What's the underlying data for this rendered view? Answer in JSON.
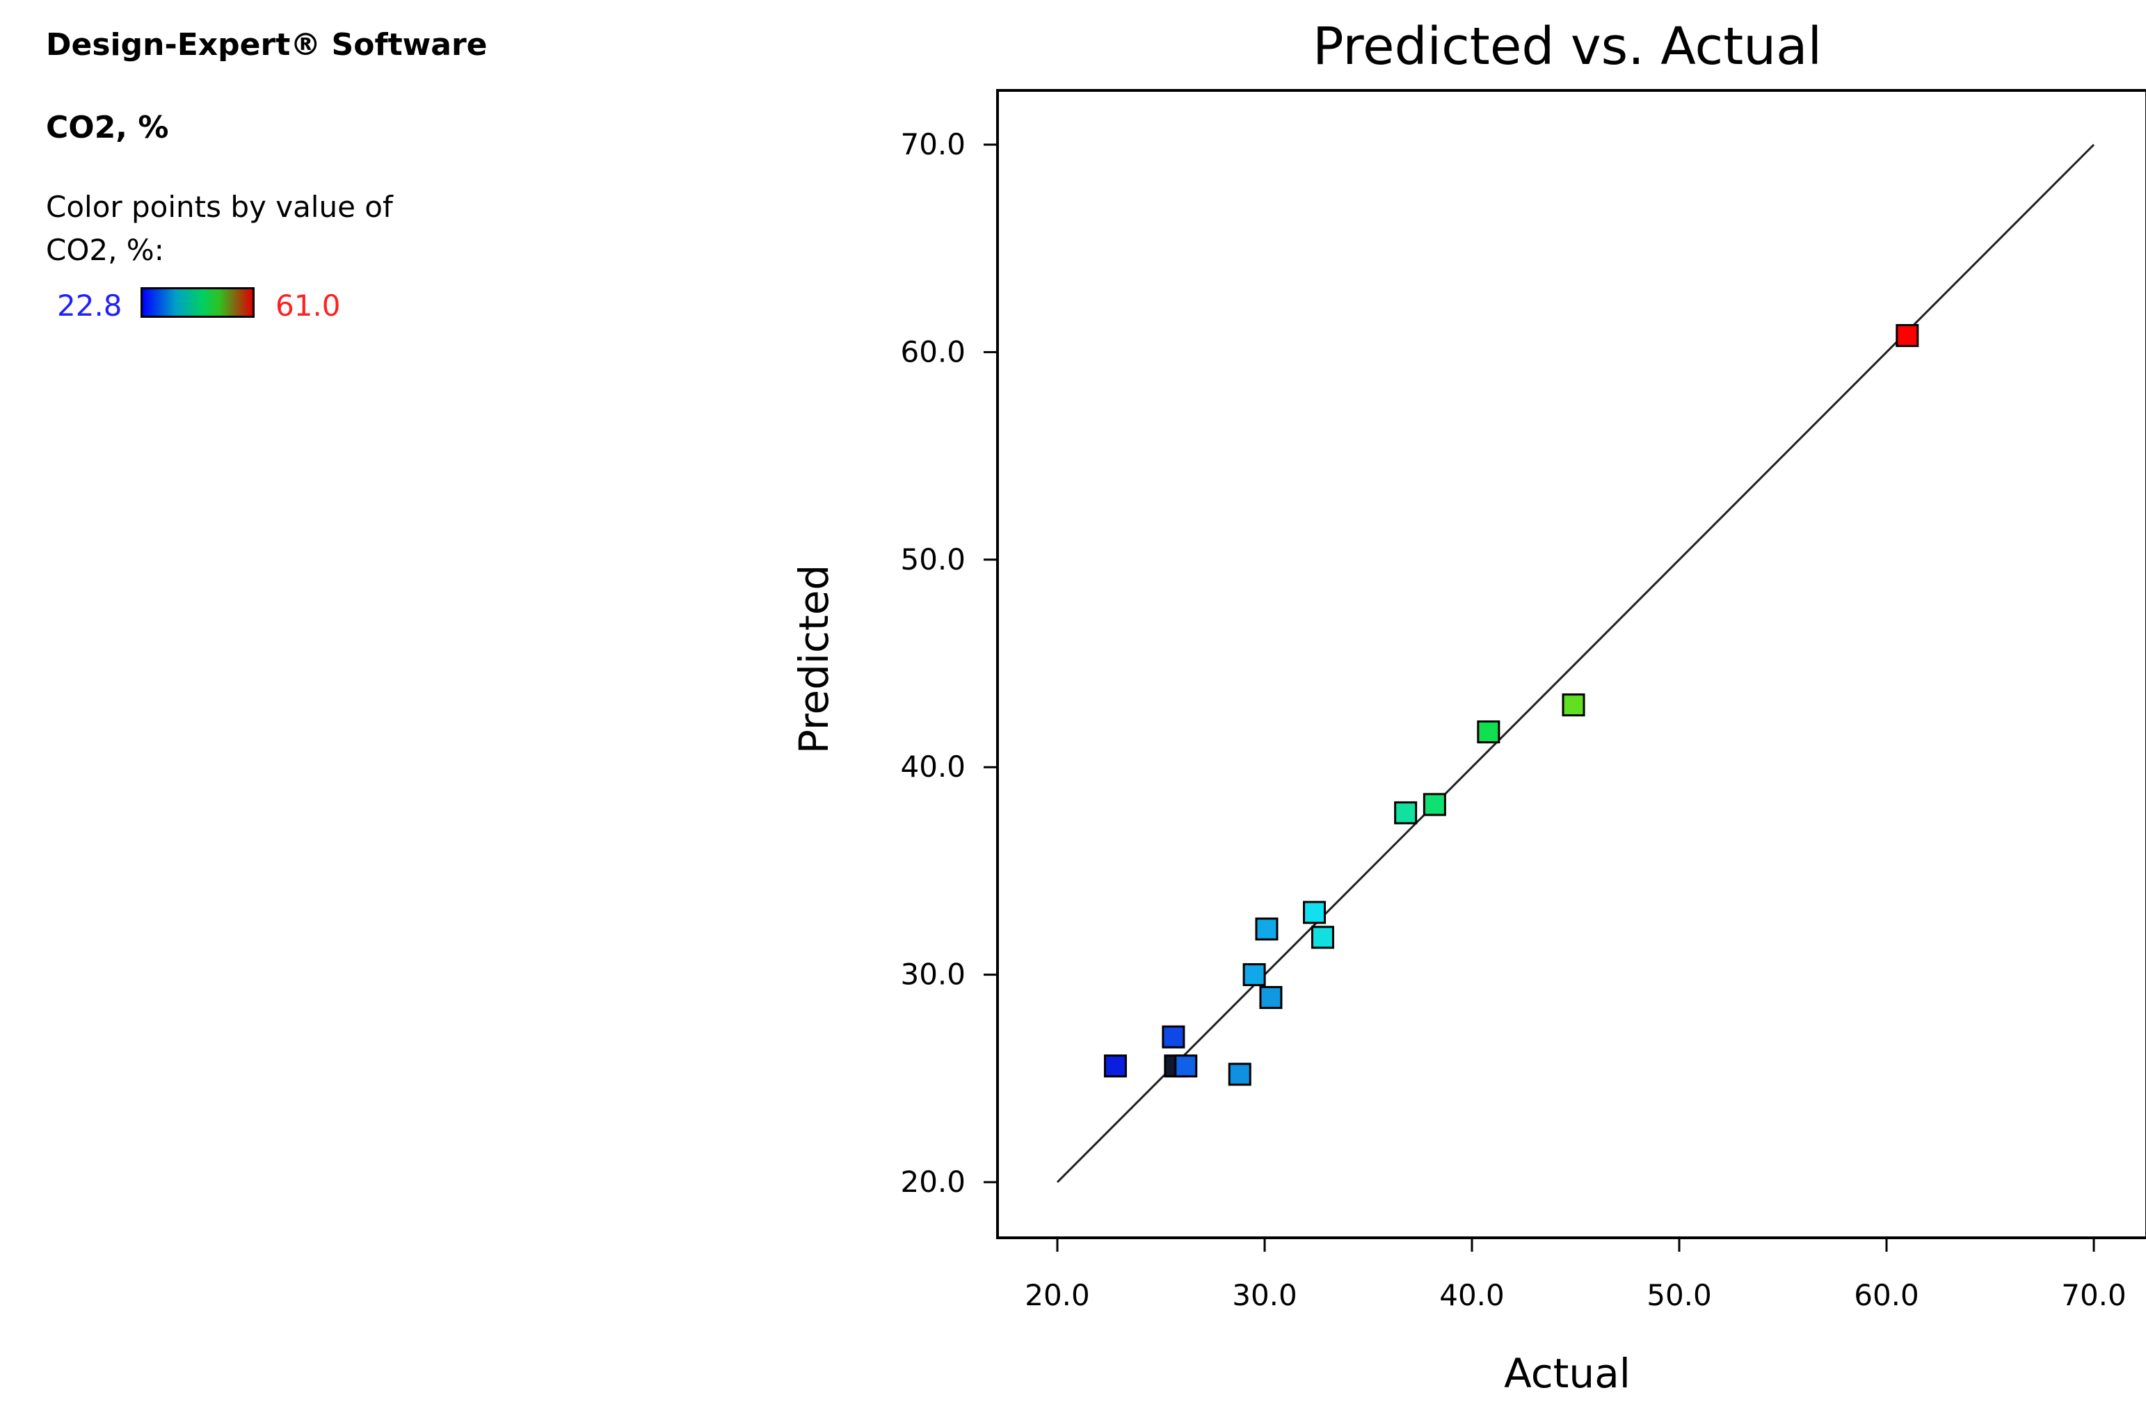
{
  "sidebar": {
    "software_title": "Design-Expert® Software",
    "response_name": "CO2, %",
    "color_note_line1": "Color points by value of",
    "color_note_line2": "CO2, %:",
    "scale_min_label": "22.8",
    "scale_max_label": "61.0",
    "scale_min_color": "#2020ff",
    "scale_max_color": "#ff2020"
  },
  "chart_data": {
    "type": "scatter",
    "title": "Predicted vs. Actual",
    "xlabel": "Actual",
    "ylabel": "Predicted",
    "xlim": [
      20,
      70
    ],
    "ylim": [
      20,
      70
    ],
    "xticks": [
      "20.0",
      "30.0",
      "40.0",
      "50.0",
      "60.0",
      "70.0"
    ],
    "yticks": [
      "20.0",
      "30.0",
      "40.0",
      "50.0",
      "60.0",
      "70.0"
    ],
    "reference_line": {
      "from": [
        20,
        20
      ],
      "to": [
        70,
        70
      ]
    },
    "color_scale": {
      "min": 22.8,
      "max": 61.0
    },
    "points": [
      {
        "x": 22.8,
        "y": 25.6,
        "color": "#0a1ee0"
      },
      {
        "x": 25.6,
        "y": 27.0,
        "color": "#1048e8"
      },
      {
        "x": 25.7,
        "y": 25.6,
        "color": "#101830"
      },
      {
        "x": 26.2,
        "y": 25.6,
        "color": "#1060e8"
      },
      {
        "x": 28.8,
        "y": 25.2,
        "color": "#1090e0"
      },
      {
        "x": 29.5,
        "y": 30.0,
        "color": "#10a8e8"
      },
      {
        "x": 30.1,
        "y": 32.2,
        "color": "#10a8e8"
      },
      {
        "x": 30.3,
        "y": 28.9,
        "color": "#1098e0"
      },
      {
        "x": 32.4,
        "y": 33.0,
        "color": "#10e0f0"
      },
      {
        "x": 32.8,
        "y": 31.8,
        "color": "#10e0e0"
      },
      {
        "x": 36.8,
        "y": 37.8,
        "color": "#10e0a0"
      },
      {
        "x": 38.2,
        "y": 38.2,
        "color": "#10e070"
      },
      {
        "x": 40.8,
        "y": 41.7,
        "color": "#10e050"
      },
      {
        "x": 44.9,
        "y": 43.0,
        "color": "#60e020"
      },
      {
        "x": 61.0,
        "y": 60.8,
        "color": "#ff0000"
      }
    ]
  }
}
